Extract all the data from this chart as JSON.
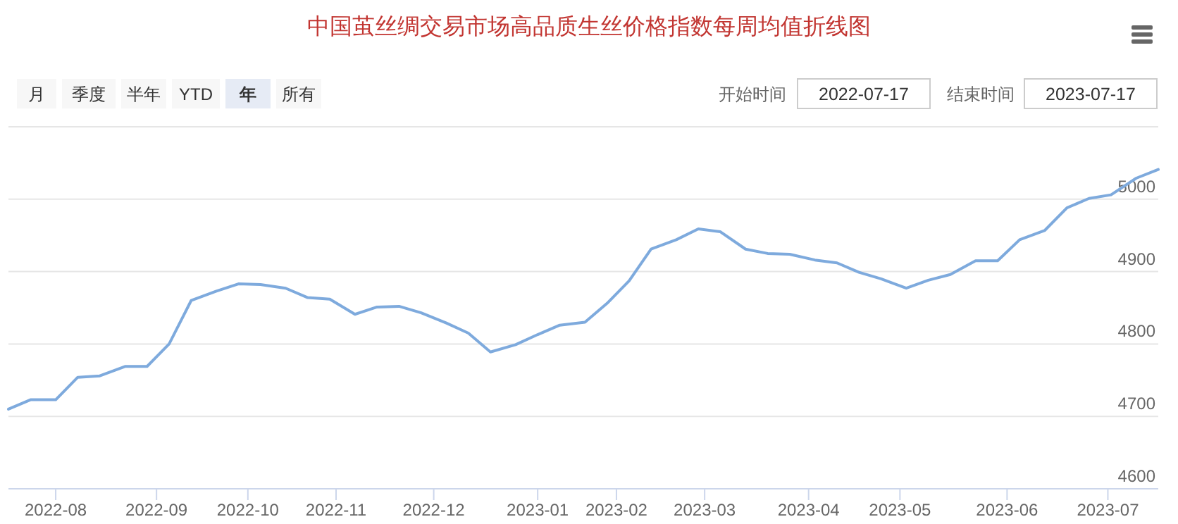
{
  "chart_data": {
    "type": "line",
    "title": "中国茧丝绸交易市场高品质生丝价格指数每周均值折线图",
    "annotations": [
      "月",
      "季度",
      "半年",
      "YTD",
      "年",
      "所有",
      "开始时间",
      "2022-07-17",
      "结束时间",
      "2023-07-17"
    ],
    "x": [
      "2022-07-17",
      "2022-07-24",
      "2022-08-01",
      "2022-08-08",
      "2022-08-15",
      "2022-08-23",
      "2022-08-30",
      "2022-09-06",
      "2022-09-13",
      "2022-09-21",
      "2022-09-28",
      "2022-10-05",
      "2022-10-13",
      "2022-10-20",
      "2022-10-27",
      "2022-11-04",
      "2022-11-11",
      "2022-11-18",
      "2022-11-25",
      "2022-12-03",
      "2022-12-10",
      "2022-12-17",
      "2022-12-25",
      "2023-01-01",
      "2023-01-08",
      "2023-01-16",
      "2023-01-23",
      "2023-01-30",
      "2023-02-06",
      "2023-02-14",
      "2023-02-21",
      "2023-02-28",
      "2023-03-08",
      "2023-03-15",
      "2023-03-22",
      "2023-03-30",
      "2023-04-06",
      "2023-04-13",
      "2023-04-20",
      "2023-04-28",
      "2023-05-05",
      "2023-05-12",
      "2023-05-20",
      "2023-05-27",
      "2023-06-03",
      "2023-06-11",
      "2023-06-18",
      "2023-06-25",
      "2023-07-02",
      "2023-07-10",
      "2023-07-17"
    ],
    "series": [
      {
        "color": "#7eaadd",
        "values": [
          4710,
          4723,
          4723,
          4754,
          4756,
          4769,
          4769,
          4800,
          4860,
          4873,
          4883,
          4882,
          4877,
          4864,
          4862,
          4841,
          4851,
          4852,
          4843,
          4829,
          4815,
          4789,
          4799,
          4813,
          4826,
          4830,
          4856,
          4887,
          4931,
          4944,
          4959,
          4955,
          4931,
          4925,
          4924,
          4916,
          4912,
          4899,
          4890,
          4877,
          4888,
          4896,
          4915,
          4915,
          4944,
          4957,
          4988,
          5001,
          5006,
          5029,
          5041
        ]
      }
    ],
    "xlim": [
      "2022-07-17",
      "2023-07-17"
    ],
    "xticks": [
      {
        "value": "2022-08-01",
        "label": "2022-08"
      },
      {
        "value": "2022-09-02",
        "label": "2022-09"
      },
      {
        "value": "2022-10-01",
        "label": "2022-10"
      },
      {
        "value": "2022-10-29",
        "label": "2022-11"
      },
      {
        "value": "2022-11-29",
        "label": "2022-12"
      },
      {
        "value": "2023-01-01",
        "label": "2023-01"
      },
      {
        "value": "2023-01-26",
        "label": "2023-02"
      },
      {
        "value": "2023-02-23",
        "label": "2023-03"
      },
      {
        "value": "2023-03-28",
        "label": "2023-04"
      },
      {
        "value": "2023-04-26",
        "label": "2023-05"
      },
      {
        "value": "2023-05-30",
        "label": "2023-06"
      },
      {
        "value": "2023-07-01",
        "label": "2023-07"
      }
    ],
    "ylim": [
      4600,
      5100
    ],
    "yticks": [
      4600,
      4700,
      4800,
      4900,
      5000,
      {
        "value": 5100,
        "label": null
      }
    ],
    "grid": "y",
    "marker": "none",
    "line_style": "solid"
  }
}
